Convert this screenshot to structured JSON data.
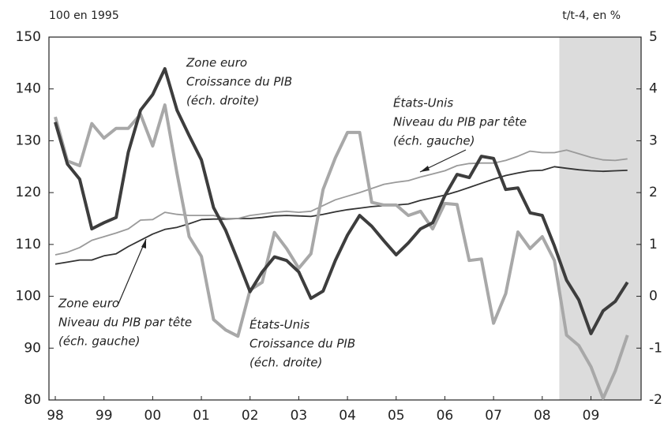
{
  "chart_data": {
    "type": "line",
    "y_axis_label": "100 en 1995",
    "y2_axis_label": "t/t-4, en %",
    "x": [
      1998.0,
      1998.25,
      1998.5,
      1998.75,
      1999.0,
      1999.25,
      1999.5,
      1999.75,
      2000.0,
      2000.25,
      2000.5,
      2000.75,
      2001.0,
      2001.25,
      2001.5,
      2001.75,
      2002.0,
      2002.25,
      2002.5,
      2002.75,
      2003.0,
      2003.25,
      2003.5,
      2003.75,
      2004.0,
      2004.25,
      2004.5,
      2004.75,
      2005.0,
      2005.25,
      2005.5,
      2005.75,
      2006.0,
      2006.25,
      2006.5,
      2006.75,
      2007.0,
      2007.25,
      2007.5,
      2007.75,
      2008.0,
      2008.25,
      2008.5,
      2008.75,
      2009.0,
      2009.25,
      2009.5,
      2009.75
    ],
    "xlim": [
      1997.87,
      2010.03
    ],
    "xticks": [
      {
        "value": 1998,
        "label": "98"
      },
      {
        "value": 1999,
        "label": "99"
      },
      {
        "value": 2000,
        "label": "00"
      },
      {
        "value": 2001,
        "label": "01"
      },
      {
        "value": 2002,
        "label": "02"
      },
      {
        "value": 2003,
        "label": "03"
      },
      {
        "value": 2004,
        "label": "04"
      },
      {
        "value": 2005,
        "label": "05"
      },
      {
        "value": 2006,
        "label": "06"
      },
      {
        "value": 2007,
        "label": "07"
      },
      {
        "value": 2008,
        "label": "08"
      },
      {
        "value": 2009,
        "label": "09"
      }
    ],
    "ylim": [
      80,
      150
    ],
    "yticks": [
      80,
      90,
      100,
      110,
      120,
      130,
      140,
      150
    ],
    "y2lim": [
      -2,
      5
    ],
    "y2ticks": [
      -2,
      -1,
      0,
      1,
      2,
      3,
      4,
      5
    ],
    "shaded_xrange": [
      2008.35,
      2010.03
    ],
    "shade_color": "#dcdcdc",
    "series": [
      {
        "name": "Zone euro Niveau du PIB par tête",
        "color": "#333333",
        "width": 1.8,
        "values": [
          106.2,
          106.6,
          107.0,
          107.0,
          107.8,
          108.2,
          109.6,
          110.8,
          112.0,
          112.9,
          113.3,
          114.0,
          114.8,
          114.9,
          114.9,
          115.0,
          115.0,
          115.2,
          115.5,
          115.6,
          115.5,
          115.4,
          115.8,
          116.3,
          116.7,
          117.0,
          117.3,
          117.5,
          117.6,
          117.8,
          118.5,
          119.0,
          119.5,
          120.2,
          121.0,
          121.8,
          122.6,
          123.3,
          123.8,
          124.2,
          124.3,
          125.0,
          124.7,
          124.4,
          124.2,
          124.1,
          124.2,
          124.3
        ]
      },
      {
        "name": "États-Unis Niveau du PIB par tête",
        "color": "#9a9a9a",
        "width": 1.8,
        "values": [
          108.0,
          108.5,
          109.4,
          110.8,
          111.5,
          112.2,
          113.0,
          114.7,
          114.8,
          116.2,
          115.8,
          115.6,
          115.6,
          115.6,
          115.0,
          115.0,
          115.6,
          115.9,
          116.2,
          116.4,
          116.2,
          116.4,
          117.5,
          118.6,
          119.3,
          120.0,
          120.8,
          121.6,
          122.0,
          122.3,
          123.0,
          123.6,
          124.2,
          125.2,
          125.6,
          125.7,
          125.7,
          126.2,
          127.0,
          128.0,
          127.7,
          127.7,
          128.2,
          127.5,
          126.8,
          126.3,
          126.2,
          126.5
        ]
      },
      {
        "name": "États-Unis Croissance du PIB",
        "color": "#a8a8a8",
        "width": 4,
        "axis": "y2",
        "values": [
          3.46,
          2.61,
          2.52,
          3.33,
          3.05,
          3.24,
          3.24,
          3.51,
          2.9,
          3.69,
          2.37,
          1.15,
          0.77,
          -0.45,
          -0.65,
          -0.77,
          0.12,
          0.27,
          1.23,
          0.92,
          0.54,
          0.82,
          2.06,
          2.67,
          3.16,
          3.16,
          1.81,
          1.76,
          1.76,
          1.56,
          1.64,
          1.3,
          1.79,
          1.77,
          0.69,
          0.72,
          -0.52,
          0.05,
          1.24,
          0.92,
          1.15,
          0.69,
          -0.75,
          -0.95,
          -1.36,
          -1.97,
          -1.44,
          -0.75
        ]
      },
      {
        "name": "Zone euro Croissance du PIB",
        "color": "#3d3d3d",
        "width": 4,
        "axis": "y2",
        "values": [
          3.36,
          2.55,
          2.26,
          1.3,
          1.42,
          1.52,
          2.78,
          3.59,
          3.89,
          4.39,
          3.59,
          3.1,
          2.63,
          1.71,
          1.27,
          0.69,
          0.09,
          0.47,
          0.76,
          0.69,
          0.47,
          -0.04,
          0.1,
          0.69,
          1.18,
          1.56,
          1.35,
          1.07,
          0.8,
          1.03,
          1.3,
          1.42,
          1.94,
          2.35,
          2.29,
          2.7,
          2.66,
          2.06,
          2.09,
          1.61,
          1.56,
          0.97,
          0.31,
          -0.07,
          -0.72,
          -0.28,
          -0.1,
          0.27
        ]
      }
    ],
    "annotations": [
      [
        "Zone euro",
        "Croissance du PIB",
        "(éch. droite)"
      ],
      [
        "États-Unis",
        "Niveau du PIB par tête",
        "(éch. gauche)"
      ],
      [
        "Zone euro",
        "Niveau du PIB par tête",
        "(éch. gauche)"
      ],
      [
        "États-Unis",
        "Croissance du PIB",
        "(éch. droite)"
      ]
    ]
  }
}
